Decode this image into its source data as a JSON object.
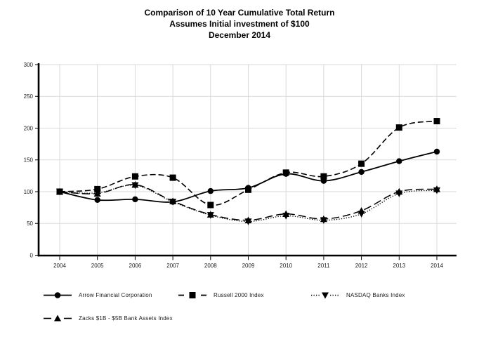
{
  "title": {
    "line1": "Comparison of 10 Year Cumulative Total Return",
    "line2": "Assumes Initial investment of $100",
    "line3": "December 2014"
  },
  "chart_data": {
    "type": "line",
    "x": [
      2004,
      2005,
      2006,
      2007,
      2008,
      2009,
      2010,
      2011,
      2012,
      2013,
      2014
    ],
    "x_labels": [
      "2004",
      "2005",
      "2006",
      "2007",
      "2008",
      "2009",
      "2010",
      "2011",
      "2012",
      "2013",
      "2014"
    ],
    "y_ticks": [
      0,
      50,
      100,
      150,
      200,
      250,
      300
    ],
    "y_tick_labels": [
      "0",
      "50",
      "100",
      "150",
      "200",
      "250",
      "300"
    ],
    "ylim": [
      0,
      300
    ],
    "grid": true,
    "legend_position": "bottom",
    "series": [
      {
        "name": "Arrow Financial Corporation",
        "marker": "circle",
        "line_style": "solid",
        "values": [
          100,
          87,
          88,
          84,
          101,
          106,
          128,
          117,
          131,
          148,
          163
        ]
      },
      {
        "name": "Russell 2000 Index",
        "marker": "square",
        "line_style": "dashed",
        "values": [
          100,
          104,
          124,
          122,
          79,
          103,
          130,
          124,
          144,
          201,
          211
        ]
      },
      {
        "name": "NASDAQ Banks Index",
        "marker": "triangle-down",
        "line_style": "dotted",
        "values": [
          100,
          98,
          110,
          84,
          63,
          53,
          62,
          55,
          65,
          97,
          102
        ]
      },
      {
        "name": "Zacks $1B - $5B Bank Assets Index",
        "marker": "triangle-up",
        "line_style": "dash",
        "values": [
          100,
          97,
          111,
          85,
          64,
          55,
          65,
          57,
          70,
          100,
          104
        ]
      }
    ],
    "colors": {
      "line": "#000000",
      "grid": "#d9d9d9",
      "background": "#ffffff",
      "tick_text": "#1a1a1a"
    }
  }
}
